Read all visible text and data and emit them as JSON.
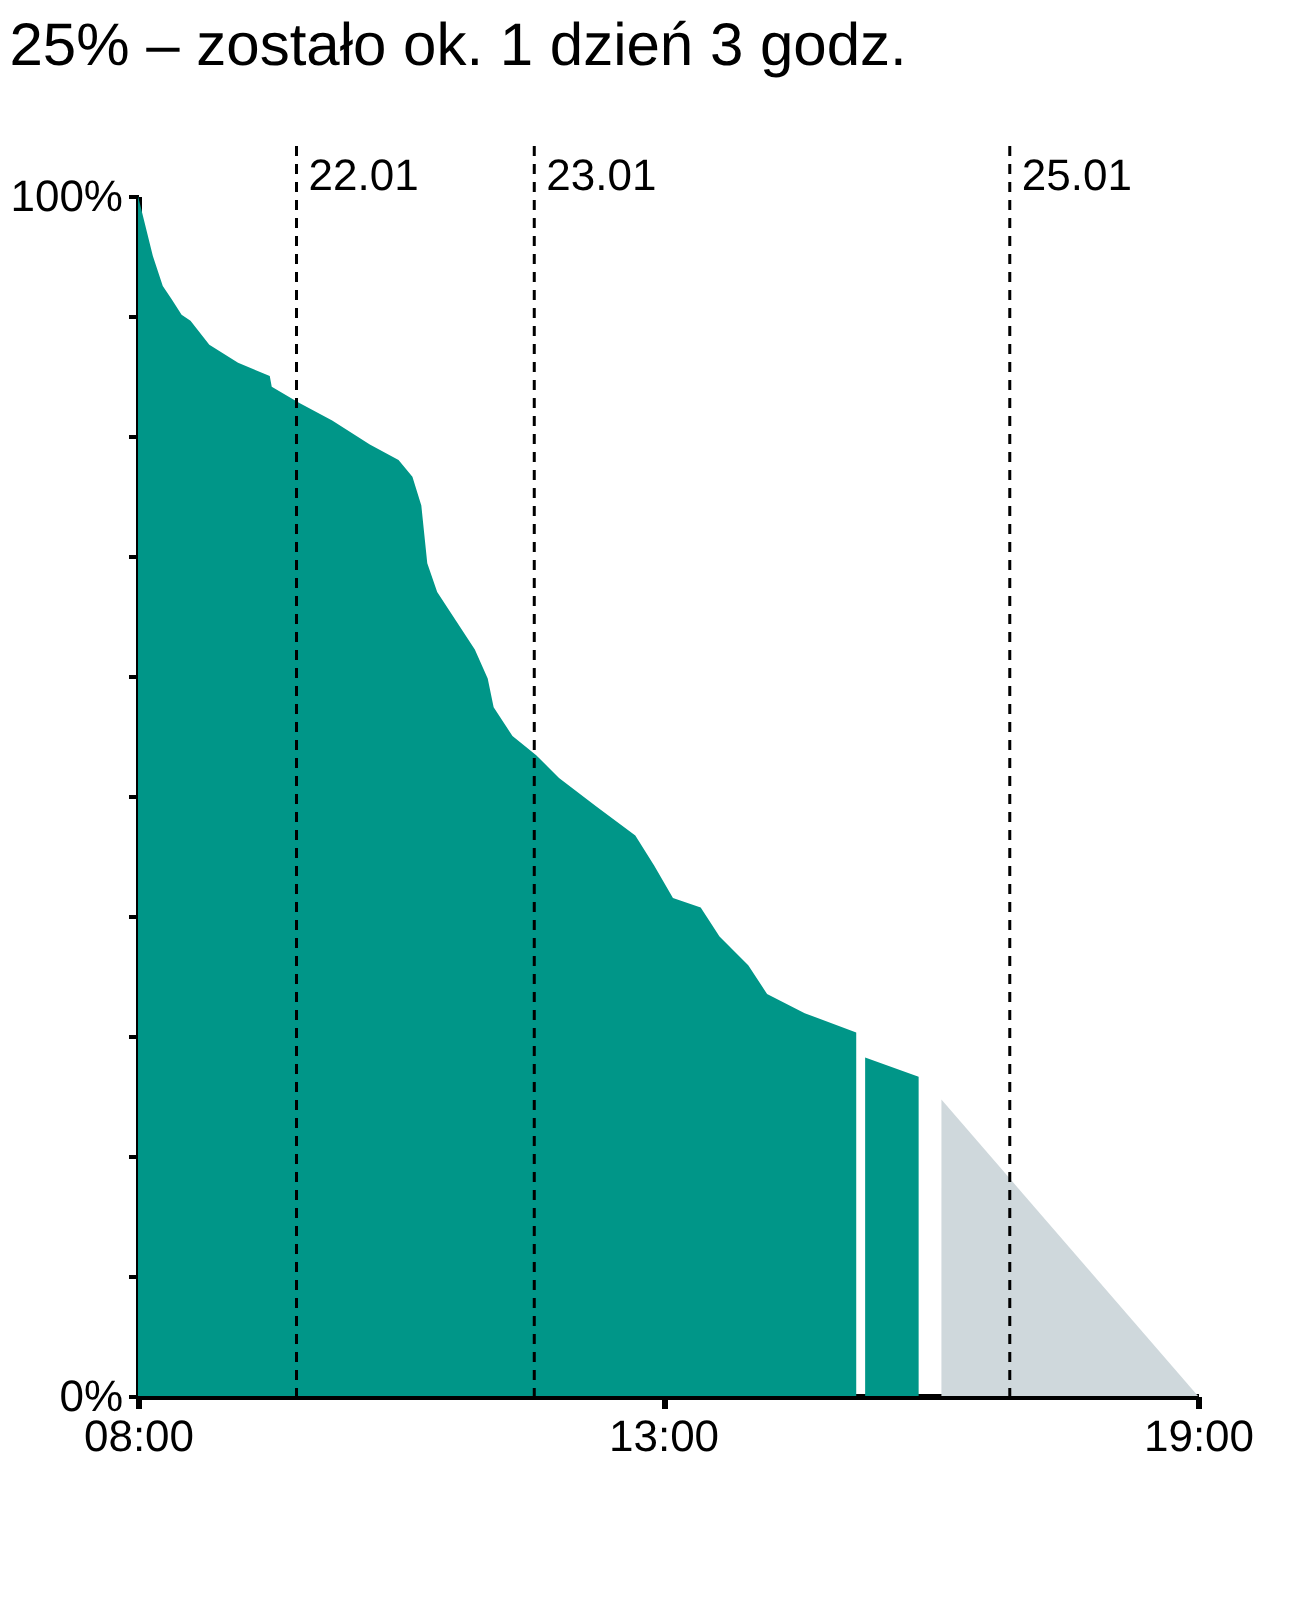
{
  "chart_data": {
    "type": "area",
    "title": "25% – zostało ok. 1 dzień 3 godz.",
    "xlim": [
      "--01-21T08:00",
      "--01-25T19:00"
    ],
    "xticks": [
      {
        "value": "--01-21T08:00",
        "label": "08:00"
      },
      {
        "value": "--01-23T13:00",
        "label": "13:00"
      },
      {
        "value": "--01-25T19:00",
        "label": "19:00"
      }
    ],
    "ylim": [
      0,
      100
    ],
    "yticks": [
      {
        "value": 0,
        "label": "0%"
      },
      {
        "value": 10,
        "label": null
      },
      {
        "value": 20,
        "label": null
      },
      {
        "value": 30,
        "label": null
      },
      {
        "value": 40,
        "label": null
      },
      {
        "value": 50,
        "label": null
      },
      {
        "value": 60,
        "label": null
      },
      {
        "value": 70,
        "label": null
      },
      {
        "value": 80,
        "label": null
      },
      {
        "value": 90,
        "label": null
      },
      {
        "value": 100,
        "label": "100%"
      }
    ],
    "grid": false,
    "series": [
      {
        "color": "#009688",
        "x": [
          "--01-21T08:00",
          "--01-21T08:36",
          "--01-21T09:30",
          "--01-21T10:30",
          "--01-21T11:24",
          "--01-21T12:24",
          "--01-21T13:18",
          "--01-21T15:12",
          "--01-21T18:06",
          "--01-21T21:18",
          "--01-21T21:30",
          "--01-22T00:12",
          "--01-22T03:36",
          "--01-22T07:24",
          "--01-22T10:18",
          "--01-22T11:42",
          "--01-22T12:36",
          "--01-22T13:12",
          "--01-22T14:12",
          "--01-22T16:06",
          "--01-22T18:00",
          "--01-22T19:18",
          "--01-22T19:54",
          "--01-22T21:48",
          "--01-23T00:12",
          "--01-23T02:30",
          "--01-23T06:18",
          "--01-23T10:12",
          "--01-23T12:06",
          "--01-23T14:00",
          "--01-23T16:48",
          "--01-23T18:42",
          "--01-23T21:36",
          "--01-23T23:30",
          "--01-24T03:18",
          "--01-24T08:30",
          "--01-24T09:00",
          "--01-24T09:24",
          "--01-24T14:48"
        ],
        "values": [
          100,
          98,
          95,
          92.5,
          91.4,
          90.1,
          89.6,
          87.6,
          86.1,
          85,
          84.1,
          82.8,
          81.3,
          79.3,
          78,
          76.6,
          74.2,
          69.4,
          67,
          64.6,
          62.2,
          59.8,
          57.4,
          55,
          53.4,
          51.5,
          49.1,
          46.7,
          44.2,
          41.5,
          40.7,
          38.3,
          35.9,
          33.5,
          31.9,
          30.3,
          null,
          28.2,
          26.6
        ]
      },
      {
        "color": "#cfd8dc",
        "x": [
          "--01-24T17:06",
          "--01-25T19:00"
        ],
        "values": [
          24.7,
          0
        ]
      }
    ],
    "ref_lines": [
      {
        "axis": "x",
        "value": "--01-22",
        "label": "22.01",
        "line_style": "dashed"
      },
      {
        "axis": "x",
        "value": "--01-23",
        "label": "23.01",
        "line_style": "dashed"
      },
      {
        "axis": "x",
        "value": "--01-25",
        "label": "25.01",
        "line_style": "dashed"
      }
    ]
  }
}
